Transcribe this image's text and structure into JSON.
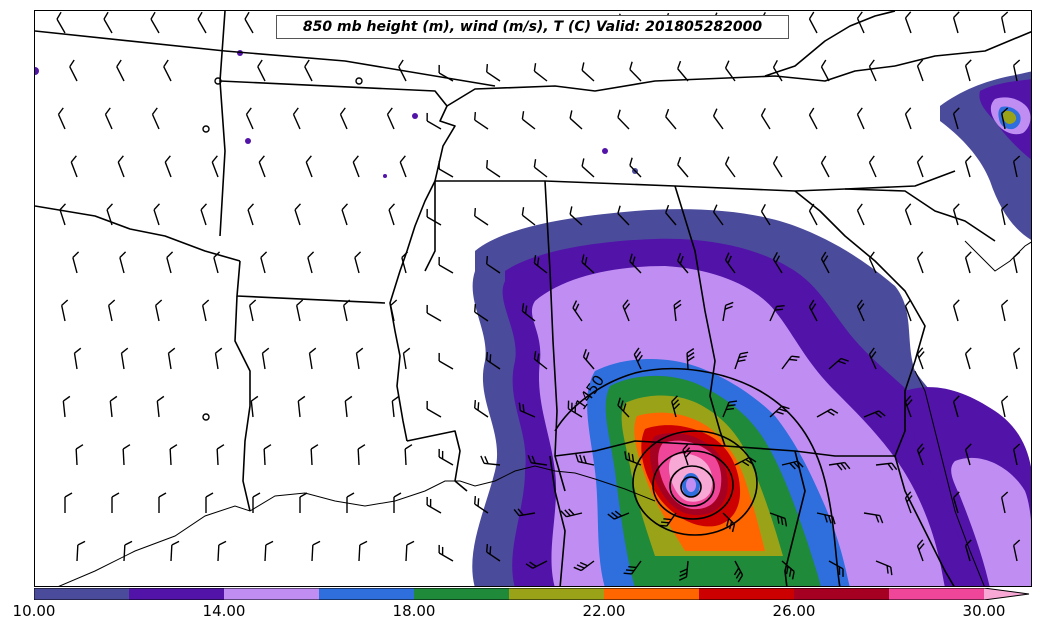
{
  "title": "850 mb height (m), wind (m/s), T (C) Valid: 201805282000",
  "contour_label": "1450",
  "colorbar": {
    "colors": [
      "#4b4b9c",
      "#5213a8",
      "#c08ef3",
      "#2e6edd",
      "#1e8a3a",
      "#9aa318",
      "#ff6600",
      "#cc0000",
      "#a50022",
      "#f0469a",
      "#f7a8d4"
    ],
    "tick_labels": [
      "10.00",
      "14.00",
      "18.00",
      "22.00",
      "26.00",
      "30.00"
    ]
  }
}
